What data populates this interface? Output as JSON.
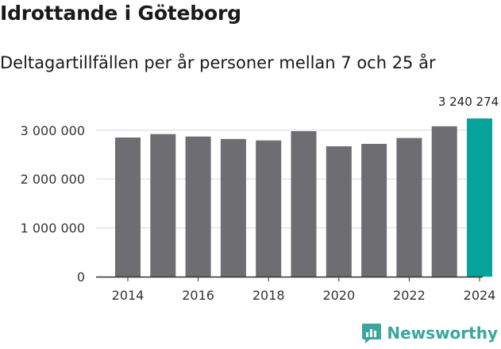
{
  "header": {
    "title": "Idrottande i Göteborg",
    "subtitle": "Deltagartillfällen per år personer mellan 7 och 25 år"
  },
  "chart_data": {
    "type": "bar",
    "title": "Idrottande i Göteborg",
    "subtitle": "Deltagartillfällen per år personer mellan 7 och 25 år",
    "categories": [
      "2014",
      "2015",
      "2016",
      "2017",
      "2018",
      "2019",
      "2020",
      "2021",
      "2022",
      "2023",
      "2024"
    ],
    "values": [
      2850000,
      2920000,
      2870000,
      2820000,
      2790000,
      2980000,
      2670000,
      2720000,
      2840000,
      3080000,
      3240274
    ],
    "highlight_index": 10,
    "highlight_label": "3 240 274",
    "ylim": [
      0,
      3240274
    ],
    "yticks": [
      0,
      1000000,
      2000000,
      3000000
    ],
    "ytick_labels": [
      "0",
      "1 000 000",
      "2 000 000",
      "3 000 000"
    ],
    "xtick_labels": [
      "2014",
      "2016",
      "2018",
      "2020",
      "2022",
      "2024"
    ],
    "xlabel": "",
    "ylabel": "",
    "grid": true,
    "colors": {
      "bar": "#6e6d72",
      "highlight": "#05a39a",
      "grid": "#d9d9d9",
      "axis": "#333333"
    }
  },
  "brand": {
    "name": "Newsworthy",
    "icon": "newsworthy-logo-icon",
    "color": "#3aa79c"
  }
}
